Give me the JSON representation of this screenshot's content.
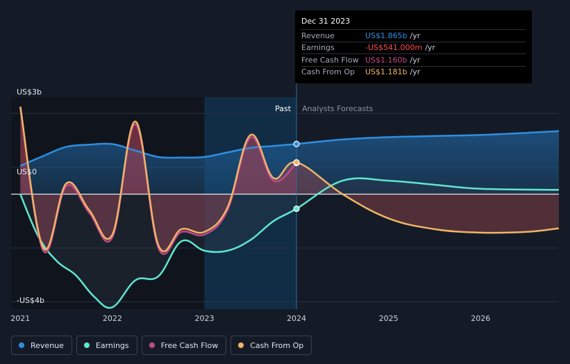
{
  "chart_data": {
    "type": "line",
    "x_axis": {
      "ticks": [
        "2021",
        "2022",
        "2023",
        "2024",
        "2025",
        "2026"
      ],
      "range": [
        2020.9,
        2026.85
      ]
    },
    "y_axis": {
      "ticks": [
        {
          "value": 3,
          "label": "US$3b"
        },
        {
          "value": 0,
          "label": "US$0"
        },
        {
          "value": -4,
          "label": "-US$4b"
        }
      ],
      "range": [
        -4.27,
        3.6
      ]
    },
    "regions": {
      "past_label": "Past",
      "forecast_label": "Analysts Forecasts",
      "split_x": 2024.0,
      "highlight_start_x": 2023.0
    },
    "series": [
      {
        "name": "Revenue",
        "color": "#2f8fe0",
        "points": [
          [
            2021.0,
            1.05
          ],
          [
            2021.25,
            1.42
          ],
          [
            2021.5,
            1.76
          ],
          [
            2021.75,
            1.84
          ],
          [
            2022.0,
            1.86
          ],
          [
            2022.25,
            1.62
          ],
          [
            2022.5,
            1.38
          ],
          [
            2022.75,
            1.36
          ],
          [
            2023.0,
            1.38
          ],
          [
            2023.25,
            1.55
          ],
          [
            2023.5,
            1.72
          ],
          [
            2023.75,
            1.79
          ],
          [
            2024.0,
            1.865
          ],
          [
            2024.5,
            2.03
          ],
          [
            2025.0,
            2.12
          ],
          [
            2025.5,
            2.16
          ],
          [
            2026.0,
            2.2
          ],
          [
            2026.5,
            2.28
          ],
          [
            2026.85,
            2.34
          ]
        ]
      },
      {
        "name": "Earnings",
        "color": "#5ee6d0",
        "points": [
          [
            2021.0,
            0.0
          ],
          [
            2021.2,
            -1.6
          ],
          [
            2021.4,
            -2.5
          ],
          [
            2021.6,
            -3.0
          ],
          [
            2021.8,
            -3.8
          ],
          [
            2022.0,
            -4.2
          ],
          [
            2022.25,
            -3.2
          ],
          [
            2022.5,
            -3.05
          ],
          [
            2022.75,
            -1.75
          ],
          [
            2023.0,
            -2.1
          ],
          [
            2023.25,
            -2.1
          ],
          [
            2023.5,
            -1.7
          ],
          [
            2023.75,
            -1.0
          ],
          [
            2024.0,
            -0.541
          ],
          [
            2024.5,
            0.5
          ],
          [
            2025.0,
            0.5
          ],
          [
            2025.5,
            0.35
          ],
          [
            2026.0,
            0.2
          ],
          [
            2026.85,
            0.16
          ]
        ]
      },
      {
        "name": "Free Cash Flow",
        "color": "#c14a8a",
        "points": [
          [
            2021.0,
            3.2
          ],
          [
            2021.25,
            -2.1
          ],
          [
            2021.5,
            0.3
          ],
          [
            2021.75,
            -0.7
          ],
          [
            2022.0,
            -1.6
          ],
          [
            2022.25,
            2.6
          ],
          [
            2022.5,
            -2.0
          ],
          [
            2022.75,
            -1.4
          ],
          [
            2023.0,
            -1.5
          ],
          [
            2023.25,
            -0.6
          ],
          [
            2023.5,
            2.1
          ],
          [
            2023.75,
            0.5
          ],
          [
            2024.0,
            1.16
          ]
        ]
      },
      {
        "name": "Cash From Op",
        "color": "#f0b567",
        "points": [
          [
            2021.0,
            3.25
          ],
          [
            2021.25,
            -2.0
          ],
          [
            2021.5,
            0.4
          ],
          [
            2021.75,
            -0.6
          ],
          [
            2022.0,
            -1.5
          ],
          [
            2022.25,
            2.7
          ],
          [
            2022.5,
            -1.9
          ],
          [
            2022.75,
            -1.3
          ],
          [
            2023.0,
            -1.4
          ],
          [
            2023.25,
            -0.5
          ],
          [
            2023.5,
            2.2
          ],
          [
            2023.75,
            0.6
          ],
          [
            2024.0,
            1.181
          ],
          [
            2024.5,
            0.0
          ],
          [
            2025.0,
            -0.9
          ],
          [
            2025.5,
            -1.3
          ],
          [
            2026.0,
            -1.43
          ],
          [
            2026.5,
            -1.4
          ],
          [
            2026.85,
            -1.27
          ]
        ]
      }
    ],
    "grid": true,
    "legend_position": "bottom-left"
  },
  "tooltip": {
    "date": "Dec 31 2023",
    "rows": [
      {
        "label": "Revenue",
        "value": "US$1.865b",
        "unit": "/yr",
        "color": "#2f8fe0"
      },
      {
        "label": "Earnings",
        "value": "-US$541.000m",
        "unit": "/yr",
        "color": "#ff4d4d"
      },
      {
        "label": "Free Cash Flow",
        "value": "US$1.160b",
        "unit": "/yr",
        "color": "#c14a8a"
      },
      {
        "label": "Cash From Op",
        "value": "US$1.181b",
        "unit": "/yr",
        "color": "#f0b567"
      }
    ]
  },
  "legend": [
    {
      "label": "Revenue",
      "color": "#2f8fe0"
    },
    {
      "label": "Earnings",
      "color": "#5ee6d0"
    },
    {
      "label": "Free Cash Flow",
      "color": "#c14a8a"
    },
    {
      "label": "Cash From Op",
      "color": "#f0b567"
    }
  ]
}
